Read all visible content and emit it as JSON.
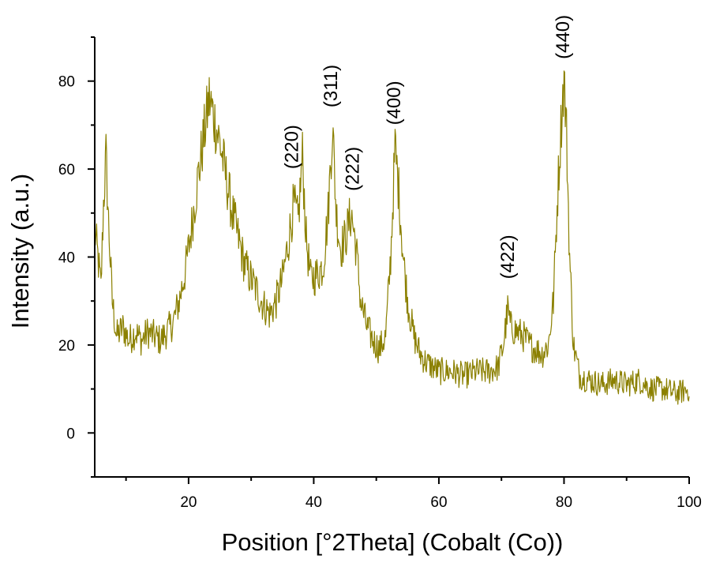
{
  "chart_data": {
    "type": "line",
    "title": "",
    "xlabel": "Position [°2Theta] (Cobalt (Co))",
    "ylabel": "Intensity (a.u.)",
    "xlim": [
      5,
      100
    ],
    "ylim": [
      -10,
      90
    ],
    "x_ticks": [
      20,
      40,
      60,
      80,
      100
    ],
    "y_ticks": [
      0,
      20,
      40,
      60,
      80
    ],
    "grid": false,
    "legend": "none",
    "line_color": "#8b8000",
    "series": [
      {
        "points": [
          [
            5,
            46
          ],
          [
            5.5,
            40
          ],
          [
            6,
            33
          ],
          [
            6.4,
            52
          ],
          [
            6.8,
            63
          ],
          [
            7.2,
            48
          ],
          [
            7.8,
            30
          ],
          [
            8.5,
            22
          ],
          [
            9.5,
            24
          ],
          [
            10.5,
            21
          ],
          [
            11.5,
            23
          ],
          [
            12.5,
            21
          ],
          [
            13.5,
            23
          ],
          [
            14.5,
            22
          ],
          [
            15.5,
            21
          ],
          [
            16.5,
            23
          ],
          [
            17.5,
            25
          ],
          [
            18.5,
            30
          ],
          [
            19.5,
            37
          ],
          [
            20.5,
            47
          ],
          [
            21.5,
            58
          ],
          [
            22.5,
            68
          ],
          [
            23.3,
            76
          ],
          [
            24,
            72
          ],
          [
            25,
            66
          ],
          [
            26,
            58
          ],
          [
            27,
            50
          ],
          [
            28,
            44
          ],
          [
            29,
            38
          ],
          [
            30,
            35
          ],
          [
            31,
            32
          ],
          [
            32,
            29
          ],
          [
            33,
            27
          ],
          [
            34,
            30
          ],
          [
            35,
            35
          ],
          [
            36,
            44
          ],
          [
            36.8,
            52
          ],
          [
            37.5,
            48
          ],
          [
            38.2,
            63
          ],
          [
            38.8,
            44
          ],
          [
            39.5,
            35
          ],
          [
            40.5,
            36
          ],
          [
            41.5,
            38
          ],
          [
            42.3,
            50
          ],
          [
            43,
            70
          ],
          [
            43.6,
            50
          ],
          [
            44.3,
            42
          ],
          [
            45,
            44
          ],
          [
            46,
            50
          ],
          [
            46.8,
            42
          ],
          [
            47.5,
            30
          ],
          [
            48.5,
            24
          ],
          [
            49.5,
            21
          ],
          [
            50.5,
            19
          ],
          [
            51.5,
            22
          ],
          [
            52.3,
            40
          ],
          [
            53,
            65
          ],
          [
            53.6,
            55
          ],
          [
            54.3,
            40
          ],
          [
            55,
            30
          ],
          [
            56,
            22
          ],
          [
            57,
            18
          ],
          [
            58,
            16
          ],
          [
            59,
            15
          ],
          [
            60,
            14
          ],
          [
            62,
            14
          ],
          [
            64,
            13
          ],
          [
            66,
            14
          ],
          [
            68,
            14
          ],
          [
            69.5,
            15
          ],
          [
            70.3,
            20
          ],
          [
            71,
            28
          ],
          [
            71.5,
            24
          ],
          [
            72.5,
            23
          ],
          [
            73.5,
            22
          ],
          [
            74.5,
            20
          ],
          [
            75.5,
            19
          ],
          [
            76.5,
            18
          ],
          [
            77.5,
            20
          ],
          [
            78.3,
            30
          ],
          [
            79,
            55
          ],
          [
            79.6,
            72
          ],
          [
            80,
            81
          ],
          [
            80.4,
            68
          ],
          [
            80.9,
            40
          ],
          [
            81.5,
            20
          ],
          [
            82.5,
            13
          ],
          [
            84,
            12
          ],
          [
            86,
            11
          ],
          [
            88,
            12
          ],
          [
            90,
            11
          ],
          [
            92,
            12
          ],
          [
            94,
            10
          ],
          [
            96,
            10
          ],
          [
            98,
            9
          ],
          [
            100,
            10
          ]
        ]
      }
    ],
    "annotations": [
      {
        "text": "(220)",
        "x": 36.5,
        "y": 60
      },
      {
        "text": "(311)",
        "x": 42.7,
        "y": 74
      },
      {
        "text": "(222)",
        "x": 46.2,
        "y": 55
      },
      {
        "text": "(400)",
        "x": 52.8,
        "y": 70
      },
      {
        "text": "(422)",
        "x": 71.0,
        "y": 35
      },
      {
        "text": "(440)",
        "x": 79.8,
        "y": 85
      }
    ]
  }
}
